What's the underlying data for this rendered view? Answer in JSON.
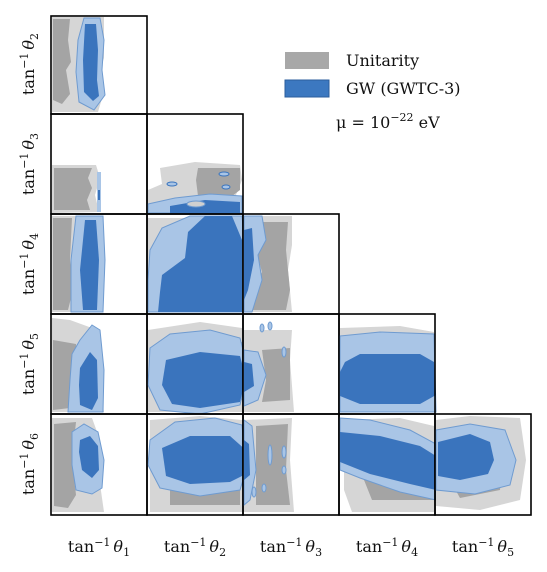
{
  "chart_data": {
    "type": "corner",
    "lower_label_prefix": "tan",
    "exponent": "−1",
    "theta": "θ",
    "params": [
      "1",
      "2",
      "3",
      "4",
      "5",
      "6"
    ],
    "legend": [
      {
        "label": "Unitarity",
        "color": "#a8a8a8"
      },
      {
        "label": "GW (GWTC-3)",
        "color": "#3c78c0"
      }
    ],
    "annotation": {
      "prefix": "μ = 10",
      "exponent": "−22",
      "suffix": " eV"
    },
    "colors": {
      "unitarity_outer": "#d6d6d6",
      "unitarity_inner": "#a4a4a4",
      "gw_outer": "#a9c5e6",
      "gw_inner": "#3a74bd",
      "gw_edge": "#6f9bd0"
    }
  }
}
